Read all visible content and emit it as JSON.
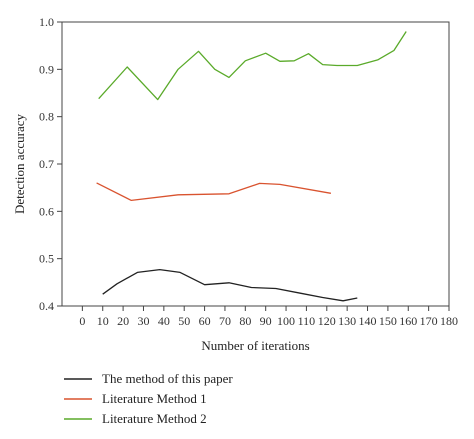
{
  "chart_data": {
    "type": "line",
    "xlabel": "Number of iterations",
    "ylabel": "Detection accuracy",
    "xlim": [
      -10,
      180
    ],
    "ylim": [
      0.4,
      1.0
    ],
    "xticks": [
      0,
      10,
      20,
      30,
      40,
      50,
      60,
      70,
      80,
      90,
      100,
      110,
      120,
      130,
      140,
      150,
      160,
      170,
      180
    ],
    "yticks": [
      0.4,
      0.5,
      0.6,
      0.7,
      0.8,
      0.9,
      1.0
    ],
    "grid": false,
    "legend_position": "bottom",
    "series": [
      {
        "name": "The method of this paper",
        "color": "#222222",
        "x": [
          10,
          17,
          27,
          38,
          48,
          60,
          72,
          83,
          95,
          107,
          118,
          128,
          135
        ],
        "y": [
          0.425,
          0.447,
          0.471,
          0.477,
          0.471,
          0.445,
          0.449,
          0.439,
          0.437,
          0.427,
          0.418,
          0.411,
          0.417
        ]
      },
      {
        "name": "Literature Method 1",
        "color": "#d9532f",
        "x": [
          7,
          24,
          47,
          72,
          87,
          97,
          122
        ],
        "y": [
          0.66,
          0.623,
          0.635,
          0.637,
          0.659,
          0.657,
          0.638
        ]
      },
      {
        "name": "Literature Method 2",
        "color": "#5aaa2a",
        "x": [
          8,
          22,
          37,
          47,
          57,
          65,
          72,
          80,
          90,
          97,
          104,
          111,
          118,
          125,
          135,
          145,
          153,
          159
        ],
        "y": [
          0.838,
          0.905,
          0.836,
          0.9,
          0.938,
          0.9,
          0.883,
          0.918,
          0.934,
          0.917,
          0.918,
          0.933,
          0.91,
          0.908,
          0.908,
          0.92,
          0.94,
          0.98
        ]
      }
    ]
  }
}
